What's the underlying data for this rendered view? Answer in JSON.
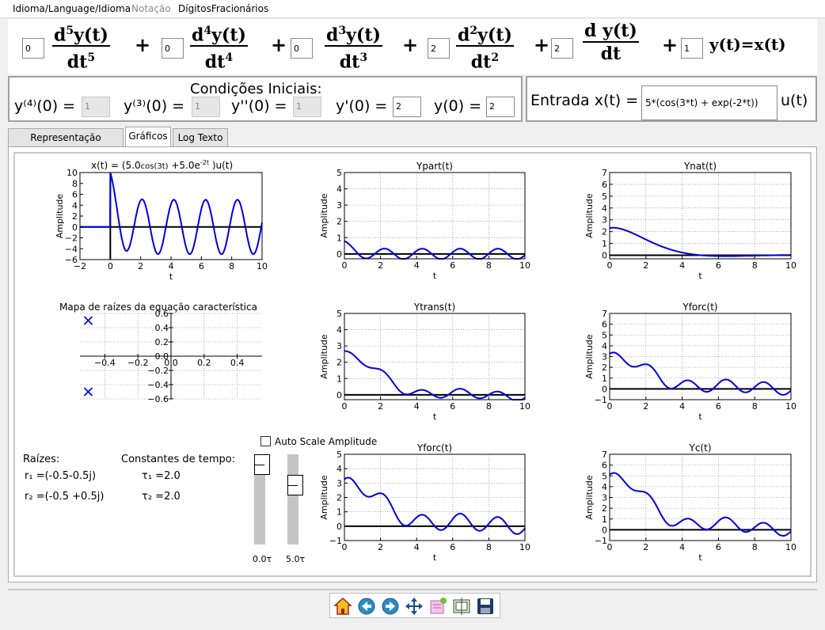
{
  "menu": {
    "language": "Idioma/Language/Idioma",
    "notation": "Notação",
    "digits": "DígitosFracionários"
  },
  "equation": {
    "coefficients": [
      "0",
      "0",
      "0",
      "2",
      "2",
      "1"
    ],
    "terms": [
      {
        "num": "d",
        "order": "5",
        "fn": "y(t)",
        "den": "dt"
      },
      {
        "num": "d",
        "order": "4",
        "fn": "y(t)",
        "den": "dt"
      },
      {
        "num": "d",
        "order": "3",
        "fn": "y(t)",
        "den": "dt"
      },
      {
        "num": "d",
        "order": "2",
        "fn": "y(t)",
        "den": "dt"
      },
      {
        "num": "d",
        "order": "",
        "fn": "y(t)",
        "den": "dt"
      }
    ],
    "plus": "+",
    "rhs": "y(t)=x(t)"
  },
  "conditions": {
    "title": "Condições  Iniciais:",
    "labels": [
      "y⁽⁴⁾(0) =",
      "y⁽³⁾(0) =",
      "y''(0) =",
      "y'(0) =",
      "y(0) ="
    ],
    "values": [
      "1",
      "1",
      "1",
      "2",
      "2"
    ]
  },
  "input": {
    "label": "Entrada x(t) =",
    "value": "5*(cos(3*t) + exp(-2*t))",
    "suffix": "u(t)"
  },
  "tabs": [
    "Representação Algébrica",
    "Gráficos",
    "Log Texto"
  ],
  "charts_text": {
    "x_title": "x(t) = (5.0cos(3t) +5.0e^-2t )u(t)",
    "roots_title": "Mapa de raízes da equação característica",
    "ylabel": "Amplitude",
    "xlabel": "t"
  },
  "roots": {
    "title": "Raízes:",
    "r1": "r₁ =(-0.5-0.5j)",
    "r2": "r₂ =(-0.5 +0.5j)",
    "tau_title": "Constantes de tempo:",
    "tau1": "τ₁ =2.0",
    "tau2": "τ₂ =2.0"
  },
  "autoscale": "Auto Scale Amplitude",
  "sliders": {
    "left": "0.0τ",
    "right": "5.0τ",
    "left_level": 0.0,
    "right_level": 0.3
  },
  "toolbar": [
    "home-icon",
    "back-icon",
    "forward-icon",
    "pan-icon",
    "configure-icon",
    "subplots-icon",
    "save-icon"
  ],
  "chart_data": [
    {
      "type": "line",
      "title": "x(t) = (5.0cos(3t) +5.0e^-2t )u(t)",
      "xlabel": "t",
      "ylabel": "Amplitude",
      "xlim": [
        -2,
        10
      ],
      "ylim": [
        -6,
        10
      ],
      "grid": false,
      "xticks": [
        -2,
        0,
        2,
        4,
        6,
        8,
        10
      ],
      "yticks": [
        -6,
        -4,
        -2,
        0,
        2,
        4,
        6,
        8,
        10
      ]
    },
    {
      "type": "line",
      "title": "Ypart(t)",
      "xlabel": "t",
      "ylabel": "Amplitude",
      "xlim": [
        0,
        10
      ],
      "ylim": [
        -0.3,
        5
      ],
      "grid": true,
      "xticks": [
        0,
        2,
        4,
        6,
        8,
        10
      ],
      "yticks": [
        0,
        1,
        2,
        3,
        4,
        5
      ]
    },
    {
      "type": "line",
      "title": "Ynat(t)",
      "xlabel": "t",
      "ylabel": "Amplitude",
      "xlim": [
        0,
        10
      ],
      "ylim": [
        -0.3,
        7
      ],
      "grid": true,
      "xticks": [
        0,
        2,
        4,
        6,
        8,
        10
      ],
      "yticks": [
        0,
        1,
        2,
        3,
        4,
        5,
        6,
        7
      ]
    },
    {
      "type": "scatter",
      "title": "Mapa de raízes da equação característica",
      "xlim": [
        -0.55,
        0.55
      ],
      "ylim": [
        -0.6,
        0.6
      ],
      "grid": true,
      "xticks": [
        -0.4,
        -0.2,
        0.0,
        0.2,
        0.4
      ],
      "yticks": [
        -0.6,
        -0.4,
        -0.2,
        0.0,
        0.2,
        0.4,
        0.6
      ],
      "points": [
        {
          "x": -0.5,
          "y": 0.5
        },
        {
          "x": -0.5,
          "y": -0.5
        }
      ]
    },
    {
      "type": "line",
      "title": "Ytrans(t)",
      "xlabel": "t",
      "ylabel": "Amplitude",
      "xlim": [
        0,
        10
      ],
      "ylim": [
        -0.3,
        5
      ],
      "grid": true,
      "xticks": [
        0,
        2,
        4,
        6,
        8,
        10
      ],
      "yticks": [
        0,
        1,
        2,
        3,
        4,
        5
      ]
    },
    {
      "type": "line",
      "title": "Yforc(t)",
      "xlabel": "t",
      "ylabel": "Amplitude",
      "xlim": [
        0,
        10
      ],
      "ylim": [
        -1,
        7
      ],
      "grid": true,
      "xticks": [
        0,
        2,
        4,
        6,
        8,
        10
      ],
      "yticks": [
        -1,
        0,
        1,
        2,
        3,
        4,
        5,
        6,
        7
      ]
    },
    {
      "type": "line",
      "title": "Yforc(t)",
      "xlabel": "t",
      "ylabel": "Amplitude",
      "xlim": [
        0,
        10
      ],
      "ylim": [
        -1,
        5
      ],
      "grid": true,
      "xticks": [
        0,
        2,
        4,
        6,
        8,
        10
      ],
      "yticks": [
        -1,
        0,
        1,
        2,
        3,
        4,
        5
      ]
    },
    {
      "type": "line",
      "title": "Yc(t)",
      "xlabel": "t",
      "ylabel": "Amplitude",
      "xlim": [
        0,
        10
      ],
      "ylim": [
        -1,
        7
      ],
      "grid": true,
      "xticks": [
        0,
        2,
        4,
        6,
        8,
        10
      ],
      "yticks": [
        -1,
        0,
        1,
        2,
        3,
        4,
        5,
        6,
        7
      ]
    }
  ]
}
